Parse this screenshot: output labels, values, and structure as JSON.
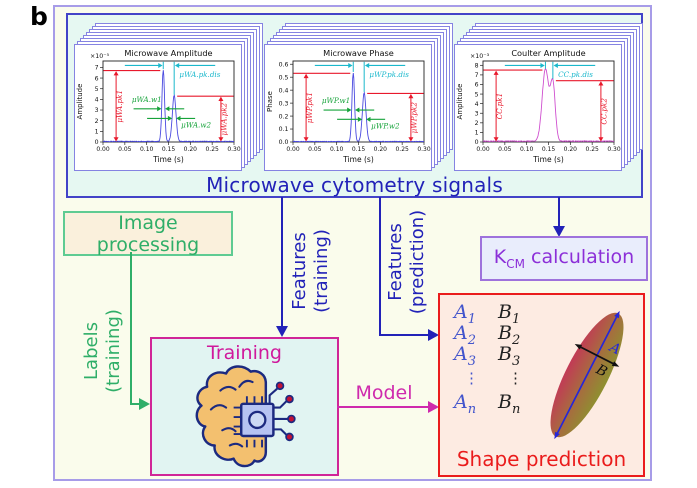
{
  "figure_label": "b",
  "colors": {
    "frame": "#a79ce8",
    "frame_bg": "#fafcec",
    "signals_border": "#4343c8",
    "signals_bg": "#e6f8f2",
    "panel_border": "#8583e2",
    "blue_text": "#2222b8",
    "green": "#2fae68",
    "green_border": "#5ecb92",
    "image_box_bg": "#faf0dc",
    "kcm_border": "#9e72dc",
    "kcm_bg": "#e9edfc",
    "kcm_text": "#8c2fd8",
    "training_border": "#d02598",
    "training_bg": "#e1f4f2",
    "training_text": "#d0189c",
    "magenta": "#cf2aad",
    "shape_border": "#ea1c1c",
    "shape_bg": "#fdebe2",
    "shape_text": "#ea1c1c",
    "a_col": "#4355cc",
    "b_col": "#222222",
    "ann_red": "#e8192c",
    "ann_cyan": "#1ab8cc",
    "ann_green": "#16a33a",
    "curve_blue": "#4a4ae0",
    "curve_magenta": "#cf4fcf",
    "ellipse_red": "#c23a56",
    "ellipse_mid": "#a86a40",
    "ellipse_olive": "#8e9030",
    "ellipse_axis": "#2626d8",
    "brain_fill": "#f3c06f",
    "brain_stroke": "#1c2a80",
    "chip_fill": "#b6c3f2",
    "chip_core": "#ccd9f4",
    "node_red": "#c21237"
  },
  "signals_panel": {
    "label": "Microwave cytometry signals",
    "plots": [
      {
        "title": "Microwave Amplitude",
        "offset_label": "×10⁻⁵",
        "ylabel": "Amplitude",
        "xlabel": "Time (s)",
        "yticks": [
          "0",
          "1",
          "2",
          "3",
          "4",
          "5",
          "6",
          "7"
        ],
        "ymax": 7.6,
        "xticks": [
          "0.00",
          "0.05",
          "0.10",
          "0.15",
          "0.20",
          "0.25",
          "0.30"
        ],
        "xmax": 0.3,
        "curve": "blue",
        "noise": 0.07,
        "peaks": [
          {
            "t": 0.138,
            "h": 6.7,
            "w": 0.003
          },
          {
            "t": 0.163,
            "h": 4.3,
            "w": 0.0042
          }
        ],
        "pk1_value": 6.7,
        "pk2_value": 4.3,
        "annotations": {
          "pk1": "μWA.pk1",
          "pk2": "μWA.pk2",
          "pk_dis": "μWA.pk.dis",
          "w1": "μWA.w1",
          "w2": "μWA.w2"
        }
      },
      {
        "title": "Microwave Phase",
        "offset_label": "",
        "ylabel": "Phase",
        "xlabel": "Time (s)",
        "yticks": [
          "0.0",
          "0.1",
          "0.2",
          "0.3",
          "0.4",
          "0.5",
          "0.6"
        ],
        "ymax": 0.625,
        "xticks": [
          "0.00",
          "0.05",
          "0.10",
          "0.15",
          "0.20",
          "0.25",
          "0.30"
        ],
        "xmax": 0.3,
        "curve": "blue",
        "noise": 0.005,
        "peaks": [
          {
            "t": 0.138,
            "h": 0.53,
            "w": 0.003
          },
          {
            "t": 0.163,
            "h": 0.375,
            "w": 0.0042
          }
        ],
        "pk1_value": 0.53,
        "pk2_value": 0.375,
        "annotations": {
          "pk1": "μWP.pk1",
          "pk2": "μWP.pk2",
          "pk_dis": "μWP.pk.dis",
          "w1": "μWP.w1",
          "w2": "μWP.w2"
        }
      },
      {
        "title": "Coulter Amplitude",
        "offset_label": "×10⁻³",
        "ylabel": "Amplitude",
        "xlabel": "Time (s)",
        "yticks": [
          "0",
          "1",
          "2",
          "3",
          "4",
          "5",
          "6",
          "7",
          "8"
        ],
        "ymax": 8.45,
        "xticks": [
          "0.00",
          "0.05",
          "0.10",
          "0.15",
          "0.20",
          "0.25",
          "0.30"
        ],
        "xmax": 0.3,
        "curve": "magenta",
        "noise": 0.11,
        "peaks": [
          {
            "t": 0.143,
            "h": 7.5,
            "w": 0.0075
          },
          {
            "t": 0.16,
            "h": 5.9,
            "w": 0.0055
          }
        ],
        "pk1_value": 7.5,
        "pk2_value": 6.4,
        "annotations": {
          "pk1": "CC.pk1",
          "pk2": "CC.pk2",
          "pk_dis": "CC.pk.dis"
        }
      }
    ]
  },
  "image_processing": {
    "label": "Image processing"
  },
  "kcm_box": {
    "k": "K",
    "sub": "CM",
    "rest": " calculation"
  },
  "training_box": {
    "label": "Training",
    "icon": "brain-chip-icon"
  },
  "shape_box": {
    "label": "Shape prediction",
    "col_a": "A",
    "col_b": "B",
    "subscripts": [
      "1",
      "2",
      "3",
      "⋮",
      "n"
    ],
    "ellipse": {
      "major_label": "A",
      "minor_label": "B"
    }
  },
  "flows": {
    "features_training": {
      "line1": "Features",
      "line2": "(training)"
    },
    "features_prediction": {
      "line1": "Features",
      "line2": "(prediction)"
    },
    "labels_training": {
      "line1": "Labels",
      "line2": "(training)"
    },
    "model": {
      "label": "Model"
    }
  }
}
